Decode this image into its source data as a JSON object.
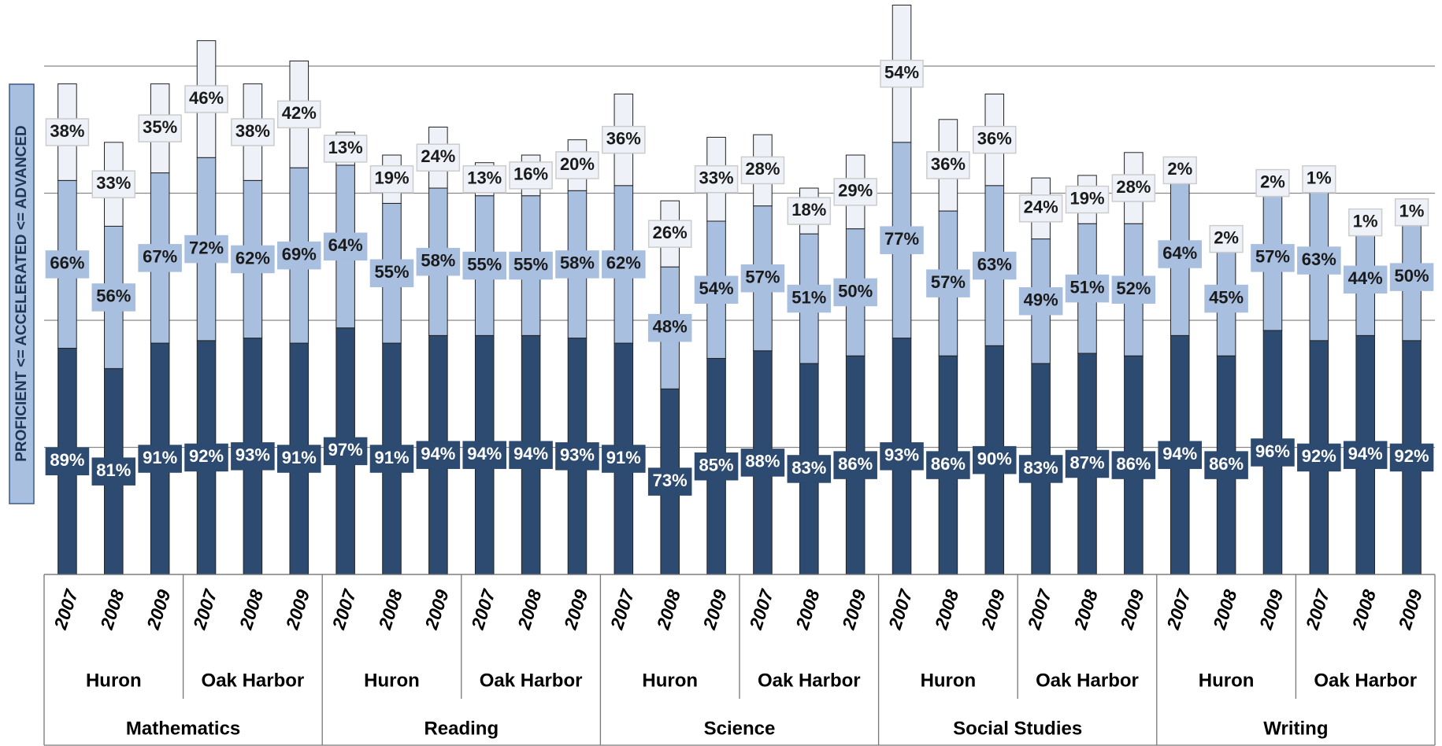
{
  "chart_data": {
    "type": "stacked_bar",
    "y_label": "PROFICIENT <= ACCELERATED <= ADVANCED",
    "categories": [
      "2007",
      "2008",
      "2009",
      "2007",
      "2008",
      "2009",
      "2007",
      "2008",
      "2009",
      "2007",
      "2008",
      "2009",
      "2007",
      "2008",
      "2009",
      "2007",
      "2008",
      "2009",
      "2007",
      "2008",
      "2009",
      "2007",
      "2008",
      "2009",
      "2007",
      "2008",
      "2009",
      "2007",
      "2008",
      "2009"
    ],
    "districts": [
      "Huron",
      "Oak Harbor",
      "Huron",
      "Oak Harbor",
      "Huron",
      "Oak Harbor",
      "Huron",
      "Oak Harbor",
      "Huron",
      "Oak Harbor"
    ],
    "subjects": [
      "Mathematics",
      "Reading",
      "Science",
      "Social Studies",
      "Writing"
    ],
    "series": [
      {
        "color": "#2d4a70",
        "label_color": "#ffffff",
        "values": [
          89,
          81,
          91,
          92,
          93,
          91,
          97,
          91,
          94,
          94,
          94,
          93,
          91,
          73,
          85,
          88,
          83,
          86,
          93,
          86,
          90,
          83,
          87,
          86,
          94,
          86,
          96,
          92,
          94,
          92
        ],
        "value_labels": [
          "89%",
          "81%",
          "91%",
          "92%",
          "93%",
          "91%",
          "97%",
          "91%",
          "94%",
          "94%",
          "94%",
          "93%",
          "91%",
          "73%",
          "85%",
          "88%",
          "83%",
          "86%",
          "93%",
          "86%",
          "90%",
          "83%",
          "87%",
          "86%",
          "94%",
          "86%",
          "96%",
          "92%",
          "94%",
          "92%"
        ]
      },
      {
        "color": "#a9bfe0",
        "label_color": "#1a1a1a",
        "values": [
          66,
          56,
          67,
          72,
          62,
          69,
          64,
          55,
          58,
          55,
          55,
          58,
          62,
          48,
          54,
          57,
          51,
          50,
          77,
          57,
          63,
          49,
          51,
          52,
          64,
          45,
          57,
          63,
          44,
          50
        ],
        "value_labels": [
          "66%",
          "56%",
          "67%",
          "72%",
          "62%",
          "69%",
          "64%",
          "55%",
          "58%",
          "55%",
          "55%",
          "58%",
          "62%",
          "48%",
          "54%",
          "57%",
          "51%",
          "50%",
          "77%",
          "57%",
          "63%",
          "49%",
          "51%",
          "52%",
          "64%",
          "45%",
          "57%",
          "63%",
          "44%",
          "50%"
        ]
      },
      {
        "color": "#eef2f8",
        "label_color": "#1a1a1a",
        "values": [
          38,
          33,
          35,
          46,
          38,
          42,
          13,
          19,
          24,
          13,
          16,
          20,
          36,
          26,
          33,
          28,
          18,
          29,
          54,
          36,
          36,
          24,
          19,
          28,
          2,
          2,
          2,
          1,
          1,
          1
        ],
        "value_labels": [
          "38%",
          "33%",
          "35%",
          "46%",
          "38%",
          "42%",
          "13%",
          "19%",
          "24%",
          "13%",
          "16%",
          "20%",
          "36%",
          "26%",
          "33%",
          "28%",
          "18%",
          "29%",
          "54%",
          "36%",
          "36%",
          "24%",
          "19%",
          "28%",
          "2%",
          "2%",
          "2%",
          "1%",
          "1%",
          "1%"
        ]
      }
    ],
    "ylim": [
      0,
      226
    ],
    "yticks": [
      0,
      50,
      100,
      150,
      200
    ],
    "grid": true
  }
}
